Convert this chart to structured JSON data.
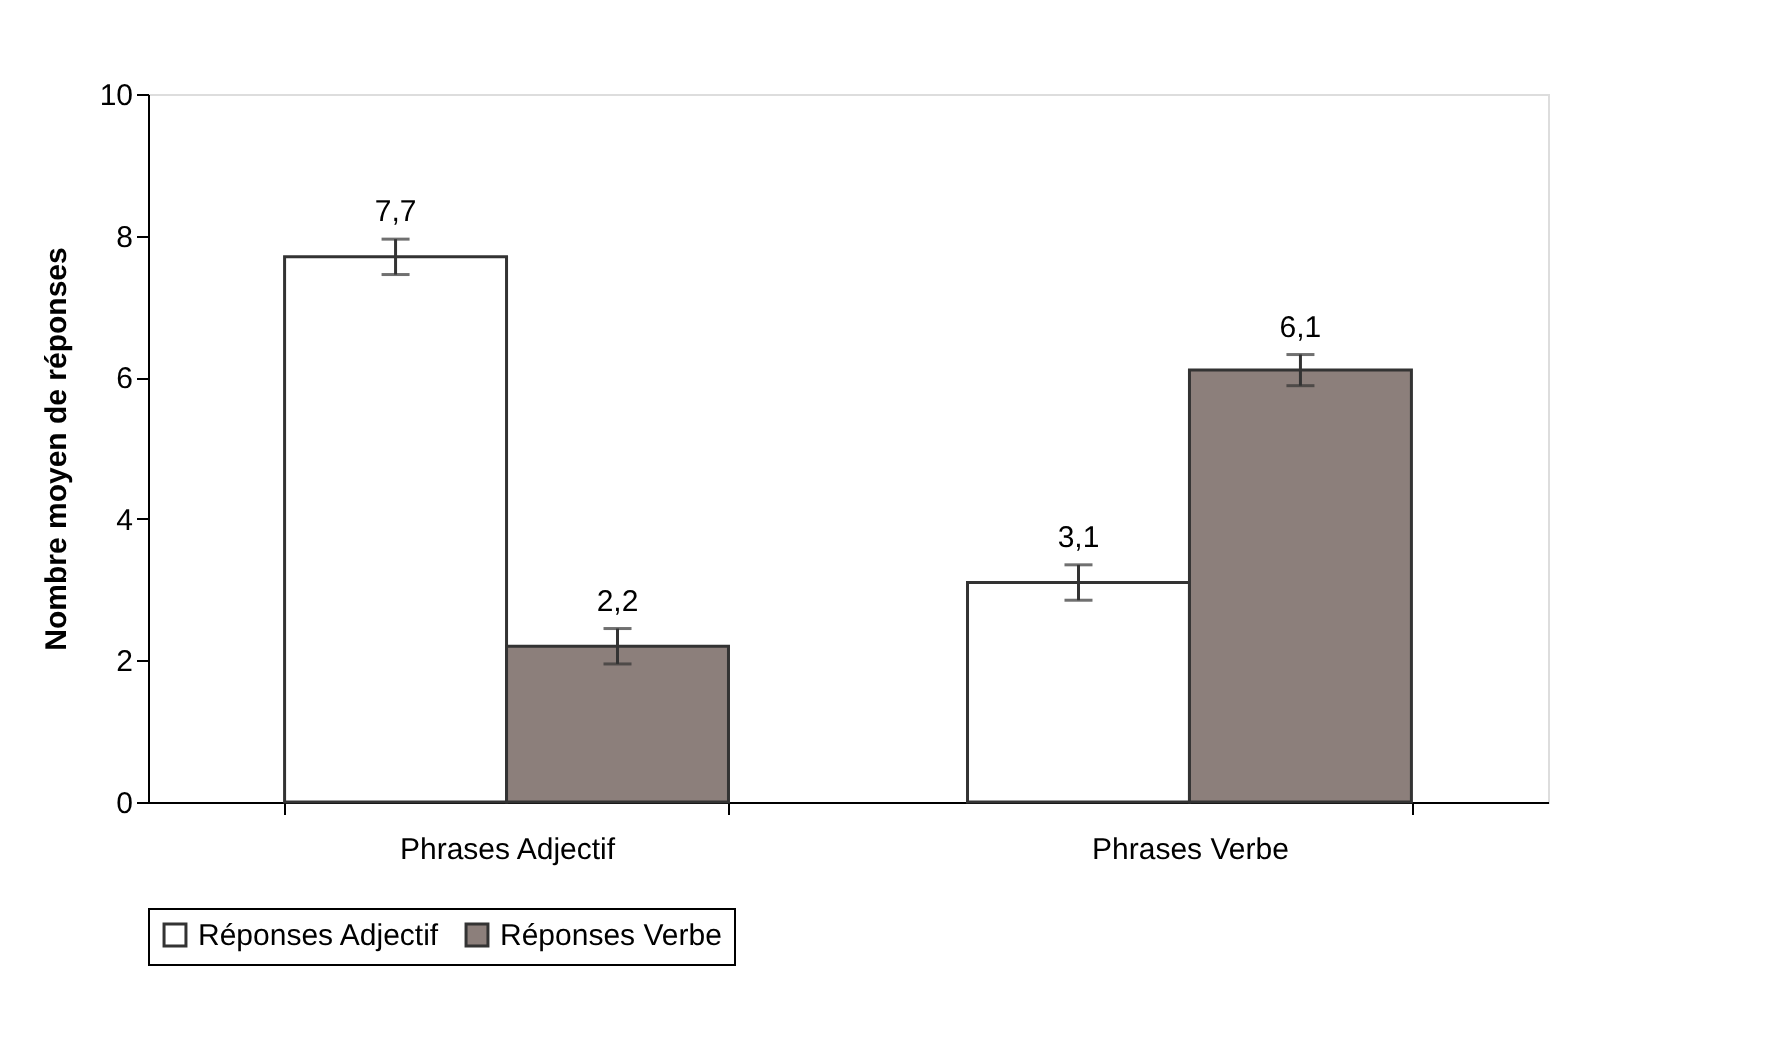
{
  "chart_data": {
    "type": "bar",
    "ylabel": "Nombre moyen de réponses",
    "categories": [
      "Phrases Adjectif",
      "Phrases Verbe"
    ],
    "series": [
      {
        "name": "Réponses Adjectif",
        "color": "#ffffff",
        "values": [
          7.7,
          3.1
        ],
        "errors": [
          0.25,
          0.25
        ],
        "value_labels": [
          "7,7",
          "3,1"
        ]
      },
      {
        "name": "Réponses Verbe",
        "color": "#8c7f7b",
        "values": [
          2.2,
          6.1
        ],
        "errors": [
          0.25,
          0.22
        ],
        "value_labels": [
          "2,2",
          "6,1"
        ]
      }
    ],
    "ylim": [
      0,
      10
    ],
    "yticks": [
      0,
      2,
      4,
      6,
      8,
      10
    ],
    "grid": false,
    "legend": "bottom"
  }
}
